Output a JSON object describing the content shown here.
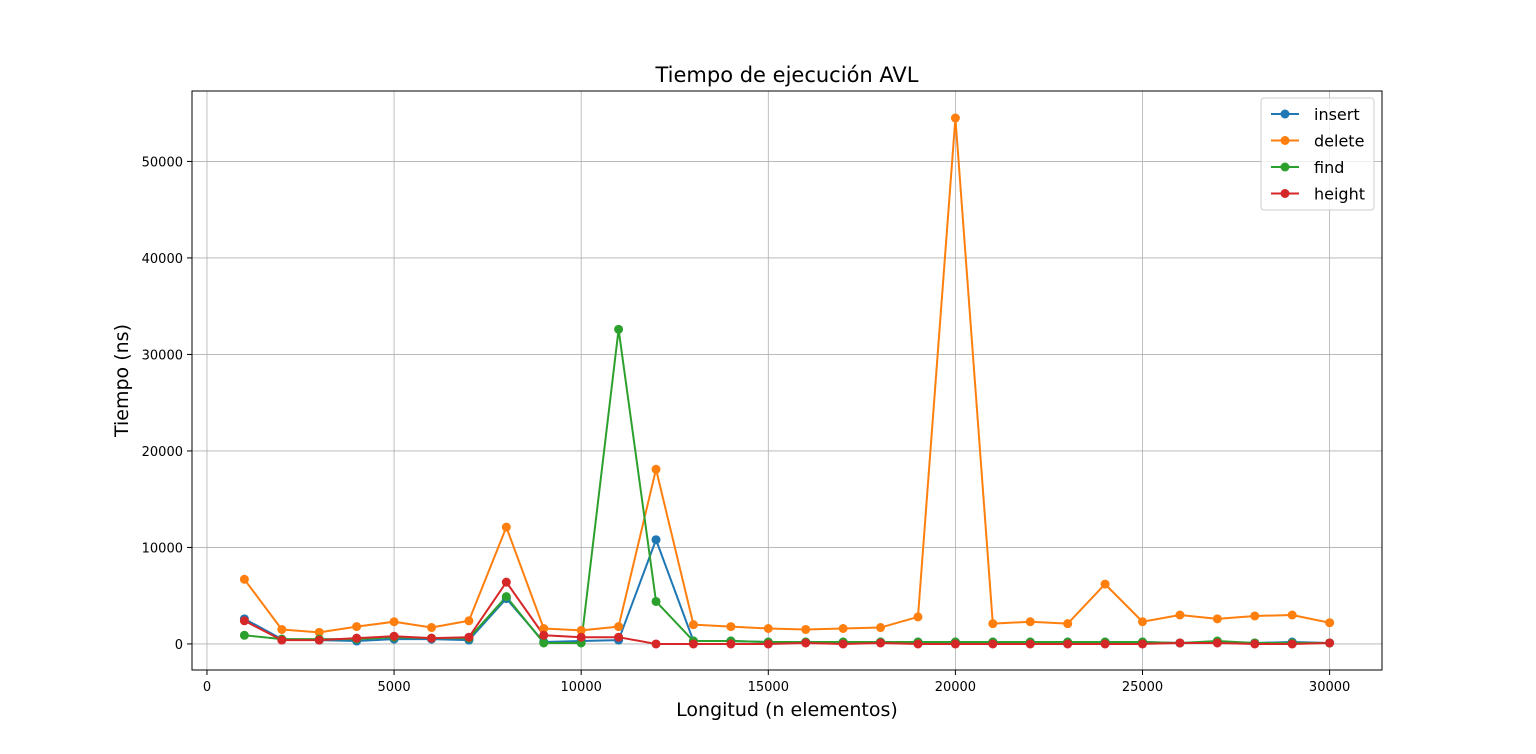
{
  "chart_data": {
    "type": "line",
    "title": "Tiempo de ejecución AVL",
    "xlabel": "Longitud (n elementos)",
    "ylabel": "Tiempo (ns)",
    "xlim": [
      -400,
      31400
    ],
    "ylim": [
      -2700,
      57300
    ],
    "xticks": [
      0,
      5000,
      10000,
      15000,
      20000,
      25000,
      30000
    ],
    "yticks": [
      0,
      10000,
      20000,
      30000,
      40000,
      50000
    ],
    "grid": true,
    "legend_position": "top-right",
    "x": [
      1000,
      2000,
      3000,
      4000,
      5000,
      6000,
      7000,
      8000,
      9000,
      10000,
      11000,
      12000,
      13000,
      14000,
      15000,
      16000,
      17000,
      18000,
      19000,
      20000,
      21000,
      22000,
      23000,
      24000,
      25000,
      26000,
      27000,
      28000,
      29000,
      30000
    ],
    "series": [
      {
        "name": "insert",
        "color": "#1f77b4",
        "values": [
          2600,
          500,
          400,
          300,
          500,
          500,
          400,
          4700,
          200,
          300,
          400,
          10800,
          300,
          300,
          200,
          200,
          200,
          200,
          200,
          200,
          200,
          200,
          200,
          200,
          200,
          100,
          200,
          100,
          200,
          100
        ]
      },
      {
        "name": "delete",
        "color": "#ff7f0e",
        "values": [
          6700,
          1500,
          1200,
          1800,
          2300,
          1700,
          2400,
          12100,
          1600,
          1400,
          1800,
          18100,
          2000,
          1800,
          1600,
          1500,
          1600,
          1700,
          2800,
          54500,
          2100,
          2300,
          2100,
          6200,
          2300,
          3000,
          2600,
          2900,
          3000,
          2200
        ]
      },
      {
        "name": "find",
        "color": "#2ca02c",
        "values": [
          900,
          500,
          500,
          500,
          700,
          600,
          600,
          4900,
          100,
          100,
          32600,
          4400,
          300,
          300,
          200,
          200,
          200,
          200,
          200,
          200,
          200,
          200,
          200,
          200,
          200,
          100,
          300,
          100,
          100,
          100
        ]
      },
      {
        "name": "height",
        "color": "#d62728",
        "values": [
          2400,
          400,
          400,
          600,
          800,
          600,
          700,
          6400,
          900,
          700,
          700,
          0,
          0,
          0,
          0,
          100,
          0,
          100,
          0,
          0,
          0,
          0,
          0,
          0,
          0,
          100,
          100,
          0,
          0,
          100
        ]
      }
    ]
  }
}
